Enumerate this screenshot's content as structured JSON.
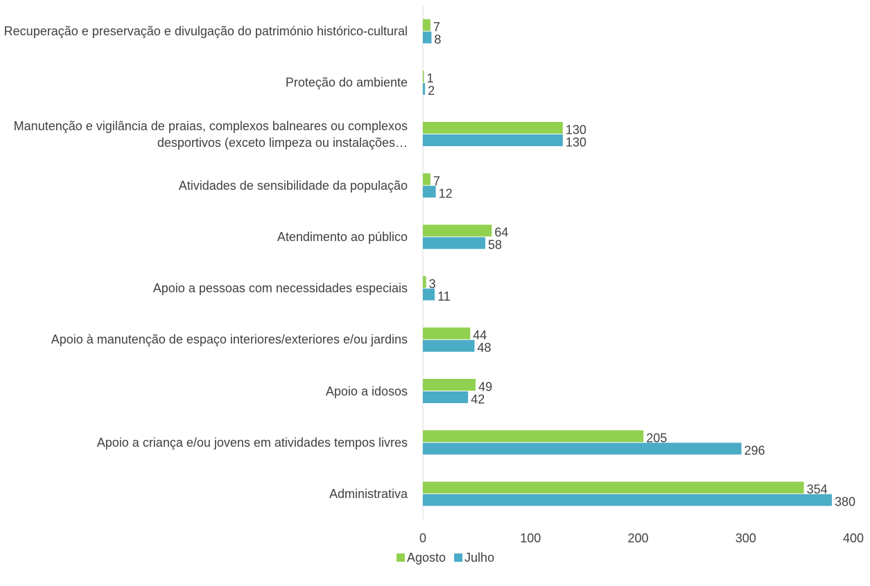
{
  "chart_data": {
    "type": "bar",
    "orientation": "horizontal",
    "categories": [
      "Recuperação e preservação e divulgação do património histórico-cultural",
      "Proteção do ambiente",
      "Manutenção e vigilância de praias, complexos balneares ou complexos desportivos (exceto limpeza ou instalações…",
      "Atividades de sensibilidade da população",
      "Atendimento ao público",
      "Apoio a pessoas com necessidades especiais",
      "Apoio à manutenção de espaço interiores/exteriores e/ou jardins",
      "Apoio a idosos",
      "Apoio a criança e/ou jovens em atividades tempos livres",
      "Administrativa"
    ],
    "series": [
      {
        "name": "Agosto",
        "color": "#92d050",
        "values": [
          7,
          1,
          130,
          7,
          64,
          3,
          44,
          49,
          205,
          354
        ]
      },
      {
        "name": "Julho",
        "color": "#4bacc6",
        "values": [
          8,
          2,
          130,
          12,
          58,
          11,
          48,
          42,
          296,
          380
        ]
      }
    ],
    "xlim": [
      0,
      400
    ],
    "xticks": [
      0,
      100,
      200,
      300,
      400
    ],
    "grid": false,
    "legend": "bottom"
  }
}
